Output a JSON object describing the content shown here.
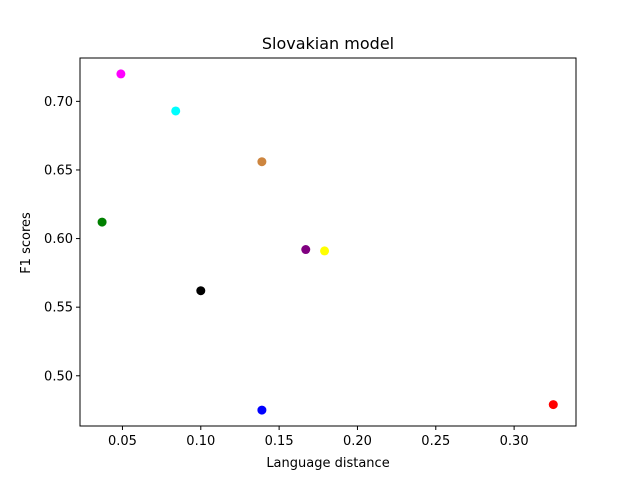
{
  "chart_data": {
    "type": "scatter",
    "title": "Slovakian model",
    "xlabel": "Language distance",
    "ylabel": "F1 scores",
    "xlim": [
      0.0229,
      0.3395
    ],
    "ylim": [
      0.4634,
      0.7316
    ],
    "xticks": [
      0.05,
      0.1,
      0.15,
      0.2,
      0.25,
      0.3
    ],
    "xtick_labels": [
      "0.05",
      "0.10",
      "0.15",
      "0.20",
      "0.25",
      "0.30"
    ],
    "yticks": [
      0.5,
      0.55,
      0.6,
      0.65,
      0.7
    ],
    "ytick_labels": [
      "0.50",
      "0.55",
      "0.60",
      "0.65",
      "0.70"
    ],
    "grid": false,
    "points": [
      {
        "x": 0.049,
        "y": 0.72,
        "color": "#ff00ff"
      },
      {
        "x": 0.084,
        "y": 0.693,
        "color": "#00ffff"
      },
      {
        "x": 0.139,
        "y": 0.656,
        "color": "#cd853f"
      },
      {
        "x": 0.037,
        "y": 0.612,
        "color": "#008000"
      },
      {
        "x": 0.167,
        "y": 0.592,
        "color": "#800080"
      },
      {
        "x": 0.179,
        "y": 0.591,
        "color": "#ffff00"
      },
      {
        "x": 0.1,
        "y": 0.562,
        "color": "#000000"
      },
      {
        "x": 0.139,
        "y": 0.475,
        "color": "#0000ff"
      },
      {
        "x": 0.325,
        "y": 0.479,
        "color": "#ff0000"
      }
    ]
  }
}
